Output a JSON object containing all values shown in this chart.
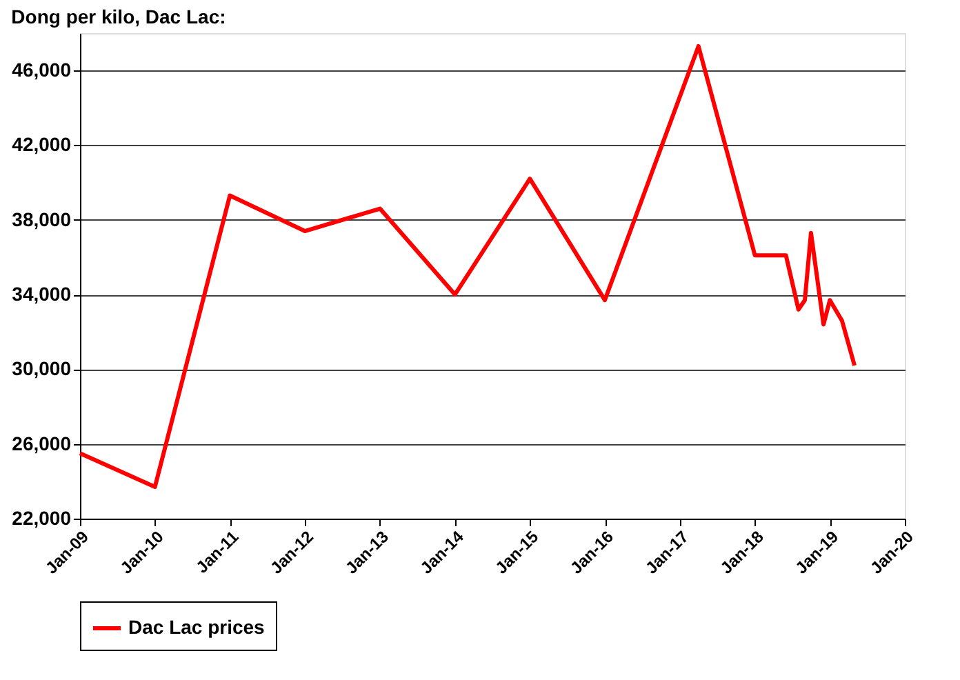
{
  "chart_data": {
    "type": "line",
    "title": "Dong per kilo, Dac Lac:",
    "x": [
      "2009-01",
      "2010-01",
      "2011-01",
      "2012-01",
      "2013-01",
      "2014-01",
      "2015-01",
      "2016-01",
      "2017-04",
      "2018-01",
      "2018-06",
      "2018-08",
      "2018-09",
      "2018-10",
      "2018-12",
      "2019-01",
      "2019-03",
      "2019-05"
    ],
    "series": [
      {
        "name": "Dac Lac prices",
        "color": "#ff0000",
        "values": [
          25500,
          23700,
          39300,
          37400,
          38600,
          34000,
          40200,
          33700,
          47300,
          36100,
          36100,
          33200,
          33700,
          37300,
          32400,
          33700,
          32600,
          30200
        ]
      }
    ],
    "xlim": [
      "2009-01",
      "2020-01"
    ],
    "xticks": [
      {
        "value": "2009-01",
        "label": "Jan-09"
      },
      {
        "value": "2010-01",
        "label": "Jan-10"
      },
      {
        "value": "2011-01",
        "label": "Jan-11"
      },
      {
        "value": "2012-01",
        "label": "Jan-12"
      },
      {
        "value": "2013-01",
        "label": "Jan-13"
      },
      {
        "value": "2014-01",
        "label": "Jan-14"
      },
      {
        "value": "2015-01",
        "label": "Jan-15"
      },
      {
        "value": "2016-01",
        "label": "Jan-16"
      },
      {
        "value": "2017-01",
        "label": "Jan-17"
      },
      {
        "value": "2018-01",
        "label": "Jan-18"
      },
      {
        "value": "2019-01",
        "label": "Jan-19"
      },
      {
        "value": "2020-01",
        "label": "Jan-20"
      }
    ],
    "ylim": [
      22000,
      48000
    ],
    "yticks": [
      {
        "value": 22000,
        "label": "22,000"
      },
      {
        "value": 26000,
        "label": "26,000"
      },
      {
        "value": 30000,
        "label": "30,000"
      },
      {
        "value": 34000,
        "label": "34,000"
      },
      {
        "value": 38000,
        "label": "38,000"
      },
      {
        "value": 42000,
        "label": "42,000"
      },
      {
        "value": 46000,
        "label": "46,000"
      }
    ],
    "grid": "y",
    "legend": "bottom",
    "marker": "none",
    "line_style": "solid"
  }
}
